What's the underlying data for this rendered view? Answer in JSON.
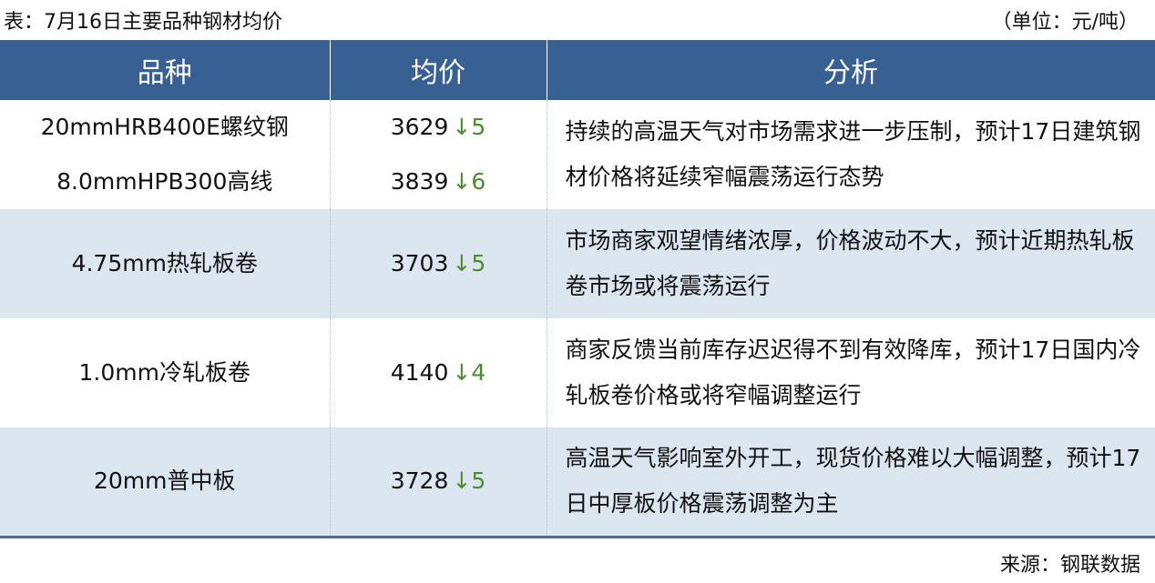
{
  "title": "表：7月16日主要品种钢材均价",
  "unit": "（单位：元/吨）",
  "headers": [
    "品种",
    "均价",
    "分析"
  ],
  "rows": [
    {
      "items": [
        {
          "name": "20mmHRB400E螺纹钢",
          "price": "3629",
          "change": "↓5"
        },
        {
          "name": "8.0mmHPB300高线",
          "price": "3839",
          "change": "↓6"
        }
      ],
      "analysis": "持续的高温天气对市场需求进一步压制，预计17日建筑钢材价格将延续窄幅震荡运行态势"
    },
    {
      "items": [
        {
          "name": "4.75mm热轧板卷",
          "price": "3703",
          "change": "↓5"
        }
      ],
      "analysis": "市场商家观望情绪浓厚，价格波动不大，预计近期热轧板卷市场或将震荡运行"
    },
    {
      "items": [
        {
          "name": "1.0mm冷轧板卷",
          "price": "4140",
          "change": "↓4"
        }
      ],
      "analysis": "商家反馈当前库存迟迟得不到有效降库，预计17日国内冷轧板卷价格或将窄幅调整运行"
    },
    {
      "items": [
        {
          "name": "20mm普中板",
          "price": "3728",
          "change": "↓5"
        }
      ],
      "analysis": "高温天气影响室外开工，现货价格难以大幅调整，预计17日中厚板价格震荡调整为主"
    }
  ],
  "source": "来源：钢联数据",
  "colors": {
    "header": "#386192",
    "alt_row": "#dce6f0",
    "down": "#4e8a33"
  }
}
